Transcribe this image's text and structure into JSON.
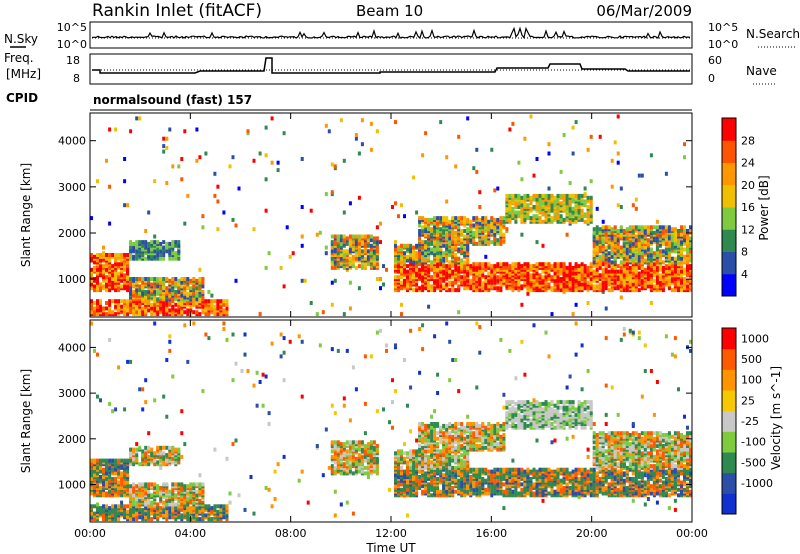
{
  "header": {
    "station": "Rankin Inlet (fitACF)",
    "beam": "Beam 10",
    "date": "06/Mar/2009"
  },
  "noise_panel": {
    "left_label": "N.Sky",
    "right_label": "N.Search",
    "ticks_left": [
      "10^5",
      "10^0"
    ],
    "ticks_right": [
      "10^5",
      "10^0"
    ]
  },
  "freq_panel": {
    "left_label_1": "Freq.",
    "left_label_2": "[MHz]",
    "right_label": "Nave",
    "ticks_left": [
      "18",
      "8"
    ],
    "ticks_right": [
      "60",
      "0"
    ]
  },
  "cpid": {
    "label": "CPID",
    "value": "normalsound (fast) 157"
  },
  "colors": {
    "power": [
      "#0000ff",
      "#2b4fa8",
      "#2f8a50",
      "#7ecb3f",
      "#f0c000",
      "#ff9800",
      "#ff5400",
      "#ff0000"
    ],
    "velocity": [
      "#ff0000",
      "#ff5a00",
      "#ff9400",
      "#f5c800",
      "#c8c8c8",
      "#7ecb3f",
      "#2f8a50",
      "#2b4fa8",
      "#1030d0"
    ]
  },
  "chart_data": [
    {
      "type": "heatmap",
      "title": "Power",
      "xlabel": "",
      "ylabel": "Slant Range [km]",
      "x_ticks": [
        "00:00",
        "04:00",
        "08:00",
        "12:00",
        "16:00",
        "20:00",
        "00:00"
      ],
      "y_ticks": [
        "1000",
        "2000",
        "3000",
        "4000"
      ],
      "ylim": [
        180,
        4600
      ],
      "colorbar": {
        "label": "Power [dB]",
        "ticks": [
          "4",
          "8",
          "12",
          "16",
          "20",
          "24",
          "28"
        ]
      }
    },
    {
      "type": "heatmap",
      "title": "Velocity",
      "xlabel": "Time UT",
      "ylabel": "Slant Range [km]",
      "x_ticks": [
        "00:00",
        "04:00",
        "08:00",
        "12:00",
        "16:00",
        "20:00",
        "00:00"
      ],
      "y_ticks": [
        "1000",
        "2000",
        "3000",
        "4000"
      ],
      "ylim": [
        180,
        4600
      ],
      "colorbar": {
        "label": "Velocity [m s^-1]",
        "ticks": [
          "1000",
          "500",
          "100",
          "25",
          "-25",
          "-100",
          "-500",
          "-1000"
        ]
      }
    }
  ]
}
